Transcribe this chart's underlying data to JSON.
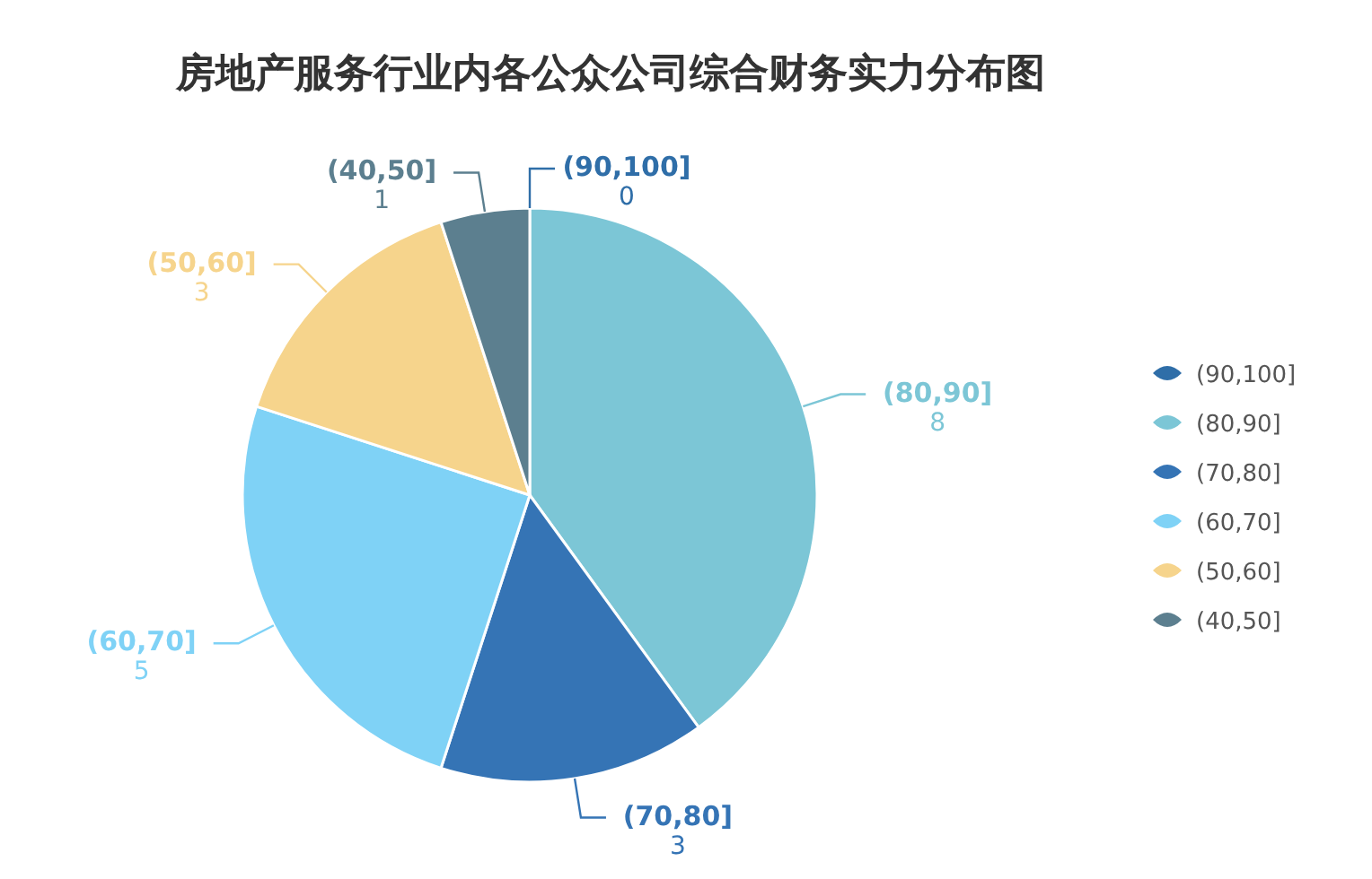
{
  "chart_data": {
    "type": "pie",
    "title": "房地产服务行业内各公众公司综合财务实力分布图",
    "categories": [
      "(90,100]",
      "(80,90]",
      "(70,80]",
      "(60,70]",
      "(50,60]",
      "(40,50]"
    ],
    "values": [
      0,
      8,
      3,
      5,
      3,
      1
    ],
    "colors": [
      "#2f6ea8",
      "#7cc6d6",
      "#3574b5",
      "#7fd2f6",
      "#f6d48c",
      "#5c7f8f"
    ],
    "value_labels": [
      "0",
      "8",
      "3",
      "5",
      "3",
      "1"
    ],
    "legend": "right"
  }
}
